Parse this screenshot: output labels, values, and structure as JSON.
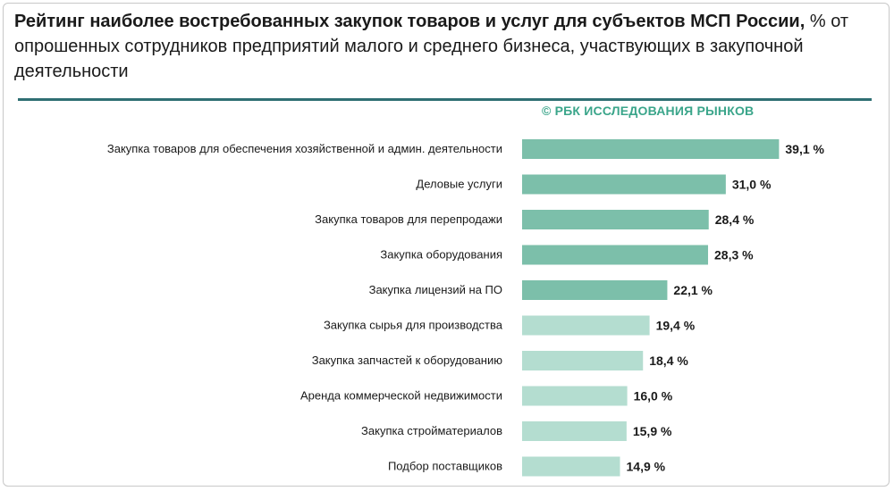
{
  "chart_data": {
    "type": "bar",
    "orientation": "horizontal",
    "title": "Рейтинг наиболее востребованных закупок товаров и услуг для субъектов МСП России,",
    "subtitle": "% от опрошенных сотрудников предприятий малого и среднего бизнеса, участвующих в закупочной деятельности",
    "source": "© РБК ИССЛЕДОВАНИЯ РЫНКОВ",
    "categories": [
      "Закупка товаров для обеспечения хозяйственной и админ. деятельности",
      "Деловые услуги",
      "Закупка товаров для перепродажи",
      "Закупка оборудования",
      "Закупка лицензий на ПО",
      "Закупка сырья для производства",
      "Закупка запчастей к оборудованию",
      "Аренда коммерческой недвижимости",
      "Закупка стройматериалов",
      "Подбор поставщиков"
    ],
    "values": [
      39.1,
      31.0,
      28.4,
      28.3,
      22.1,
      19.4,
      18.4,
      16.0,
      15.9,
      14.9
    ],
    "value_labels": [
      "39,1 %",
      "31,0 %",
      "28,4 %",
      "28,3 %",
      "22,1 %",
      "19,4 %",
      "18,4 %",
      "16,0 %",
      "15,9 %",
      "14,9 %"
    ],
    "colors": {
      "top": "#7cbfaa",
      "rest": "#b4ddd0",
      "rule": "#2f6f73",
      "source": "#3aa58a"
    },
    "highlight_count": 5,
    "grid": false,
    "legend": "none"
  }
}
